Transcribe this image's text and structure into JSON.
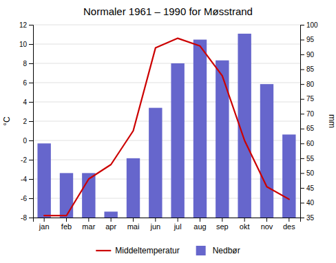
{
  "chart_data": {
    "type": "bar",
    "title": "Normaler 1961 – 1990 for Møsstrand",
    "categories": [
      "jan",
      "feb",
      "mar",
      "apr",
      "mai",
      "jun",
      "jul",
      "aug",
      "sep",
      "okt",
      "nov",
      "des"
    ],
    "series": [
      {
        "name": "Middeltemperatur",
        "type": "line",
        "color": "#cc0000",
        "values": [
          -7.8,
          -7.8,
          -4.0,
          -2.5,
          1.0,
          9.6,
          10.6,
          9.8,
          6.7,
          0.0,
          -4.8,
          -6.1
        ]
      },
      {
        "name": "Nedbør",
        "type": "bar",
        "color": "#6666cc",
        "axis": "y2",
        "values": [
          60,
          50,
          50,
          37,
          55,
          72,
          87,
          95,
          88,
          97,
          80,
          63
        ]
      }
    ],
    "y_label": "°C",
    "y2_label": "mm",
    "ylim": [
      -8,
      12
    ],
    "yticks": [
      -8,
      -6,
      -4,
      -2,
      0,
      2,
      4,
      6,
      8,
      10,
      12
    ],
    "y2lim": [
      35,
      100
    ],
    "y2ticks": [
      35,
      40,
      45,
      50,
      55,
      60,
      65,
      70,
      75,
      80,
      85,
      90,
      95,
      100
    ],
    "grid": true,
    "legend": "bottom"
  }
}
